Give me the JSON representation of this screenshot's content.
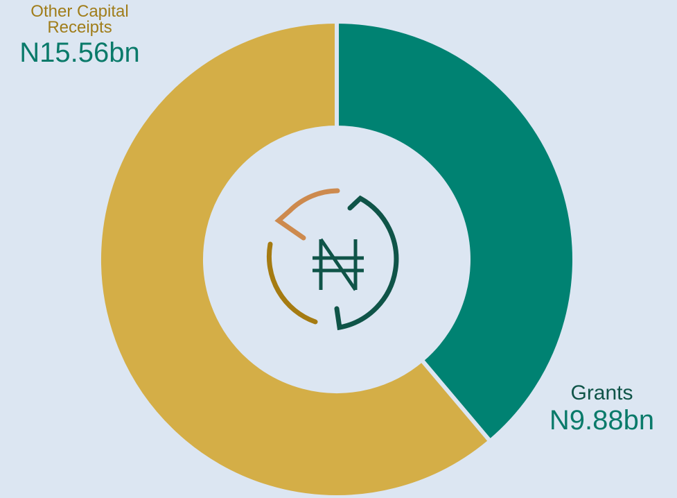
{
  "chart_data": {
    "type": "pie",
    "donut": true,
    "categories": [
      "Grants",
      "Other Capital Receipts"
    ],
    "values": [
      9.88,
      15.56
    ],
    "value_labels": [
      "N9.88bn",
      "N15.56bn"
    ],
    "colors": [
      "#008272",
      "#d4ae47"
    ]
  }
}
